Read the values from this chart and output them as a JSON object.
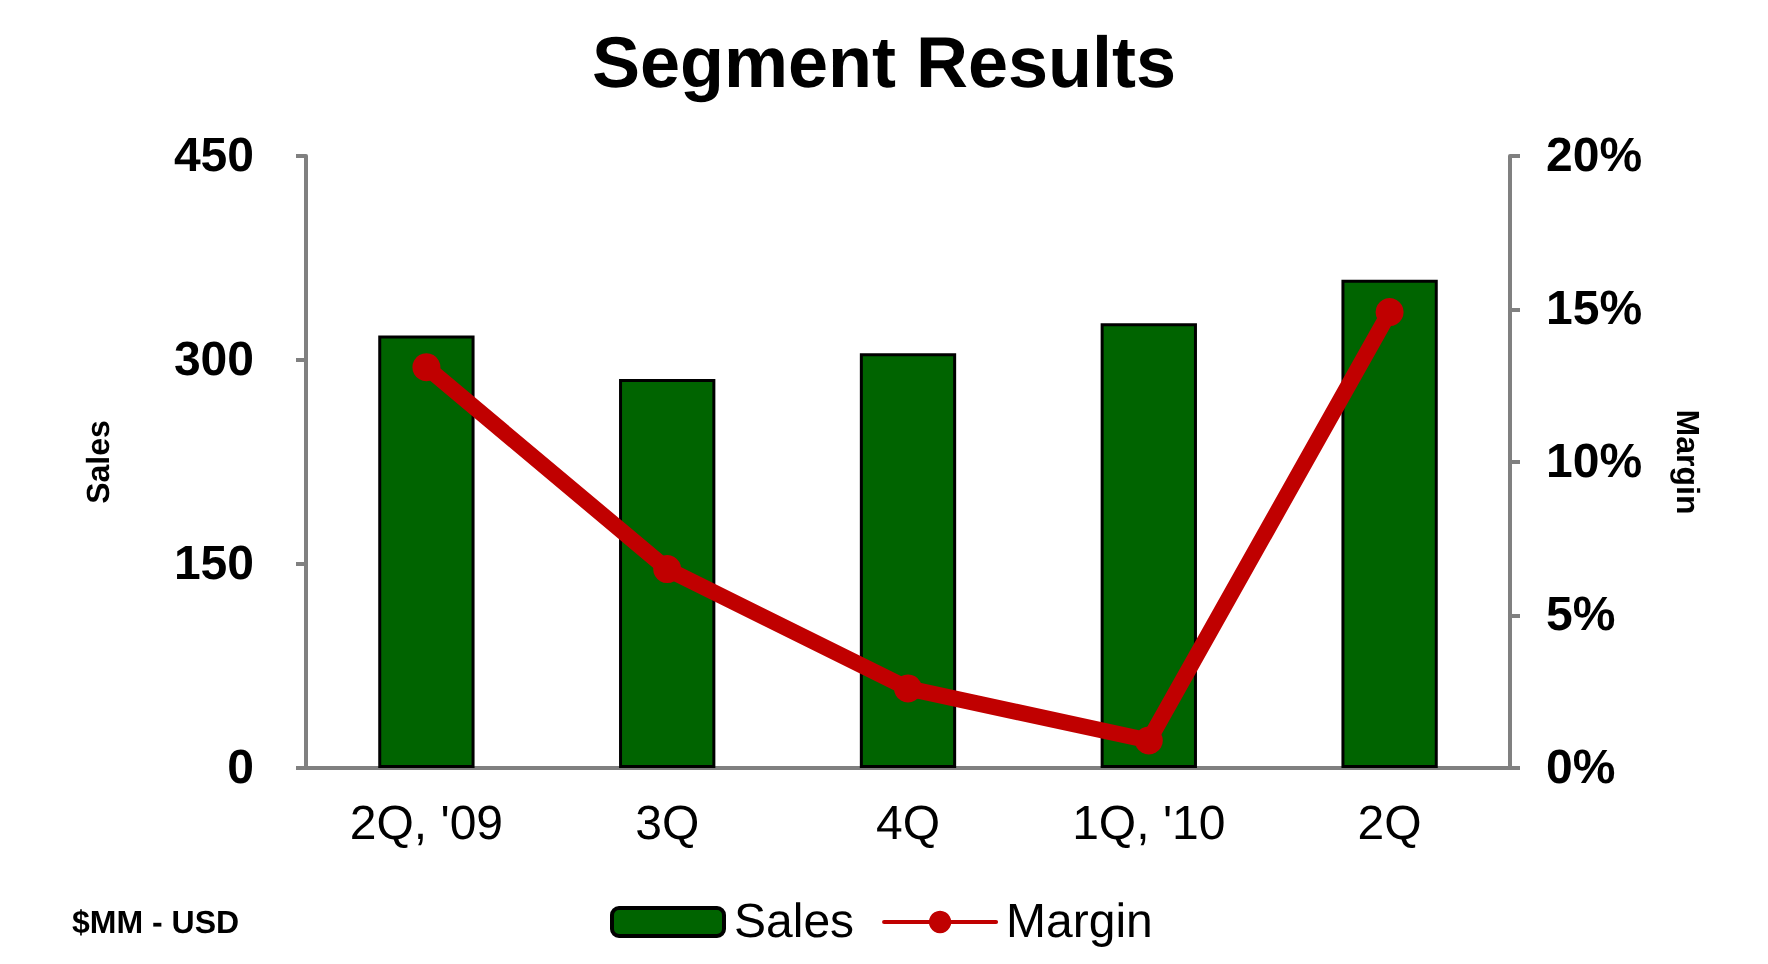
{
  "chart_data": {
    "type": "bar",
    "title": "Segment Results",
    "ylabel": "Sales",
    "y2label": "Margin",
    "annotations": [
      "$MM - USD"
    ],
    "categories": [
      "2Q, '09",
      "3Q",
      "4Q",
      "1Q, '10",
      "2Q"
    ],
    "series": [
      {
        "name": "Sales",
        "color": "#006400",
        "values": [
          318,
          286,
          305,
          327,
          359
        ]
      },
      {
        "name": "Margin",
        "type": "line",
        "axis": "y2",
        "color": "#c00000",
        "marker": "circle",
        "values": [
          13.1,
          6.5,
          2.6,
          0.9,
          14.9
        ]
      }
    ],
    "ylim": [
      0,
      450
    ],
    "yticks": [
      0,
      150,
      300,
      450
    ],
    "y2lim": [
      0,
      20
    ],
    "y2ticks": [
      {
        "value": 0,
        "label": "0%"
      },
      {
        "value": 5,
        "label": "5%"
      },
      {
        "value": 10,
        "label": "10%"
      },
      {
        "value": 15,
        "label": "15%"
      },
      {
        "value": 20,
        "label": "20%"
      }
    ],
    "grid": false,
    "legend": "bottom"
  }
}
